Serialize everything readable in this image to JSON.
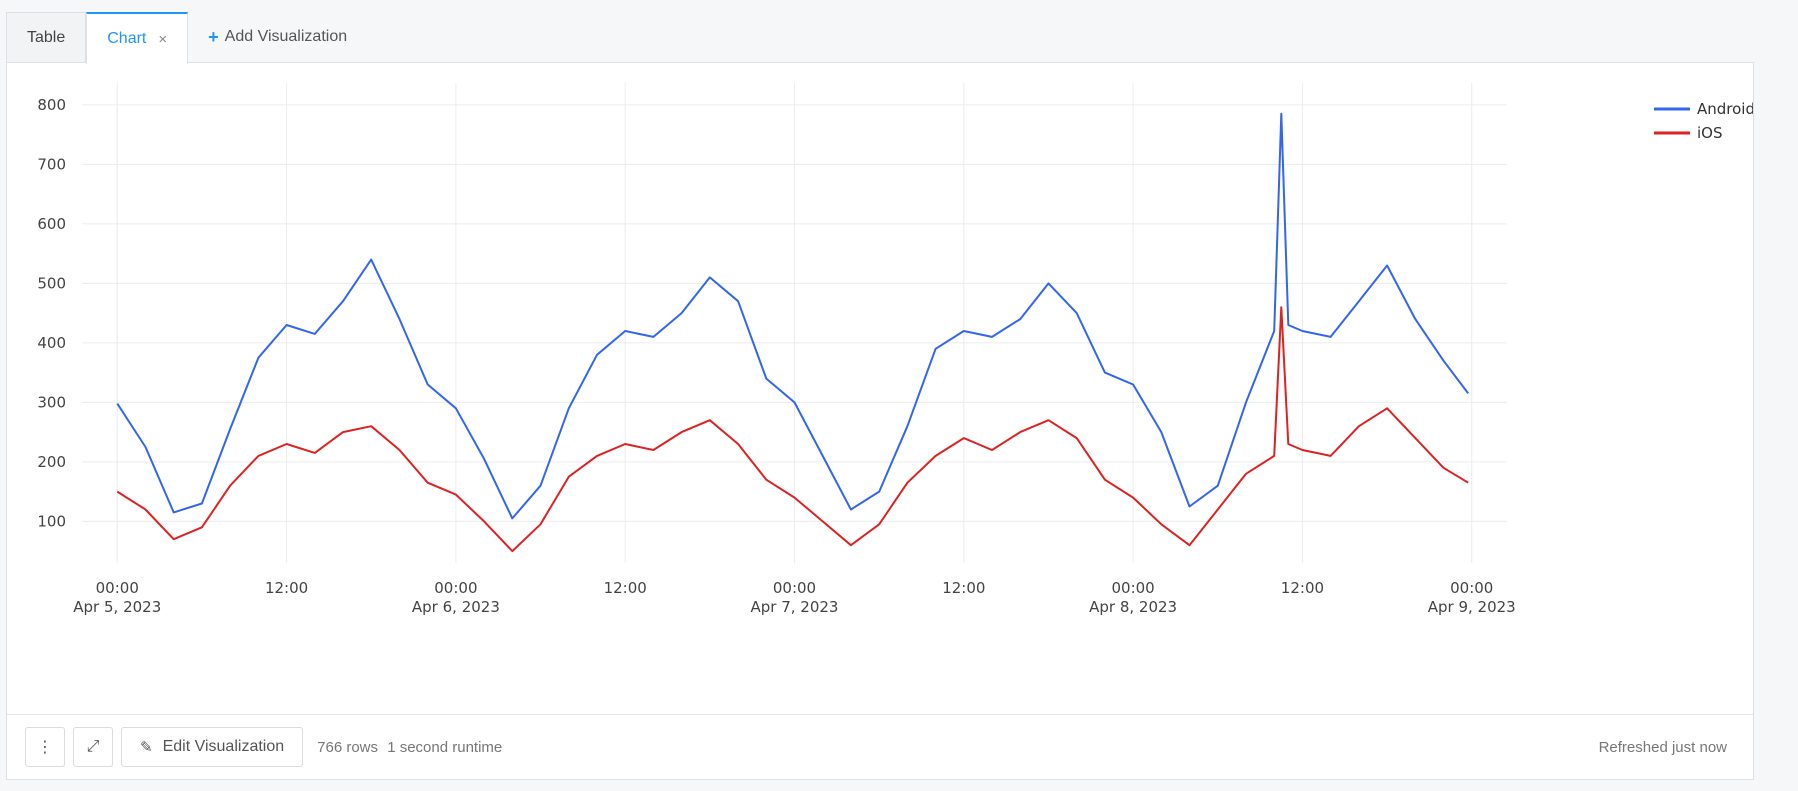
{
  "tabs": [
    {
      "label": "Table"
    },
    {
      "label": "Chart",
      "close": "×"
    },
    {
      "label": "Add Visualization",
      "plus": "+"
    }
  ],
  "footer": {
    "menu_icon": "⋮",
    "expand_icon": "⤢",
    "edit_icon": "✎",
    "edit_label": "Edit Visualization",
    "rows": "766 rows",
    "runtime": "1 second runtime",
    "refreshed": "Refreshed just now"
  },
  "chart_data": {
    "type": "line",
    "x_unit": "date-time",
    "x": [
      "2023-04-05 00:00",
      "2023-04-05 02:00",
      "2023-04-05 04:00",
      "2023-04-05 06:00",
      "2023-04-05 08:00",
      "2023-04-05 10:00",
      "2023-04-05 12:00",
      "2023-04-05 14:00",
      "2023-04-05 16:00",
      "2023-04-05 18:00",
      "2023-04-05 20:00",
      "2023-04-05 22:00",
      "2023-04-06 00:00",
      "2023-04-06 02:00",
      "2023-04-06 04:00",
      "2023-04-06 06:00",
      "2023-04-06 08:00",
      "2023-04-06 10:00",
      "2023-04-06 12:00",
      "2023-04-06 14:00",
      "2023-04-06 16:00",
      "2023-04-06 18:00",
      "2023-04-06 20:00",
      "2023-04-06 22:00",
      "2023-04-07 00:00",
      "2023-04-07 02:00",
      "2023-04-07 04:00",
      "2023-04-07 06:00",
      "2023-04-07 08:00",
      "2023-04-07 10:00",
      "2023-04-07 12:00",
      "2023-04-07 14:00",
      "2023-04-07 16:00",
      "2023-04-07 18:00",
      "2023-04-07 20:00",
      "2023-04-07 22:00",
      "2023-04-08 00:00",
      "2023-04-08 02:00",
      "2023-04-08 04:00",
      "2023-04-08 06:00",
      "2023-04-08 08:00",
      "2023-04-08 10:00",
      "2023-04-08 10:30",
      "2023-04-08 11:00",
      "2023-04-08 12:00",
      "2023-04-08 14:00",
      "2023-04-08 16:00",
      "2023-04-08 18:00",
      "2023-04-08 20:00",
      "2023-04-08 22:00",
      "2023-04-08 23:45"
    ],
    "series": [
      {
        "name": "Android",
        "color": "#3366ee",
        "values": [
          298,
          225,
          115,
          130,
          255,
          375,
          430,
          415,
          470,
          540,
          440,
          330,
          290,
          205,
          105,
          160,
          290,
          380,
          420,
          410,
          450,
          510,
          470,
          340,
          300,
          210,
          120,
          150,
          260,
          390,
          420,
          410,
          440,
          500,
          450,
          350,
          330,
          250,
          125,
          160,
          300,
          420,
          785,
          430,
          420,
          410,
          470,
          530,
          440,
          370,
          315
        ]
      },
      {
        "name": "iOS",
        "color": "#dd2222",
        "values": [
          150,
          120,
          70,
          90,
          160,
          210,
          230,
          215,
          250,
          260,
          220,
          165,
          145,
          100,
          50,
          95,
          175,
          210,
          230,
          220,
          250,
          270,
          230,
          170,
          140,
          100,
          60,
          95,
          165,
          210,
          240,
          220,
          250,
          270,
          240,
          170,
          140,
          95,
          60,
          120,
          180,
          210,
          460,
          230,
          220,
          210,
          260,
          290,
          240,
          190,
          165
        ]
      }
    ],
    "xticks": [
      {
        "x": "2023-04-05 00:00",
        "time": "00:00",
        "date": "Apr 5, 2023"
      },
      {
        "x": "2023-04-05 12:00",
        "time": "12:00",
        "date": ""
      },
      {
        "x": "2023-04-06 00:00",
        "time": "00:00",
        "date": "Apr 6, 2023"
      },
      {
        "x": "2023-04-06 12:00",
        "time": "12:00",
        "date": ""
      },
      {
        "x": "2023-04-07 00:00",
        "time": "00:00",
        "date": "Apr 7, 2023"
      },
      {
        "x": "2023-04-07 12:00",
        "time": "12:00",
        "date": ""
      },
      {
        "x": "2023-04-08 00:00",
        "time": "00:00",
        "date": "Apr 8, 2023"
      },
      {
        "x": "2023-04-08 12:00",
        "time": "12:00",
        "date": ""
      },
      {
        "x": "2023-04-09 00:00",
        "time": "00:00",
        "date": "Apr 9, 2023"
      }
    ],
    "yticks": [
      100,
      200,
      300,
      400,
      500,
      600,
      700,
      800
    ],
    "ylim": [
      30,
      820
    ],
    "xlim": [
      "2023-04-04 21:30",
      "2023-04-09 02:30"
    ],
    "grid": true,
    "legend": "top-right",
    "title": "",
    "xlabel": "",
    "ylabel": ""
  }
}
